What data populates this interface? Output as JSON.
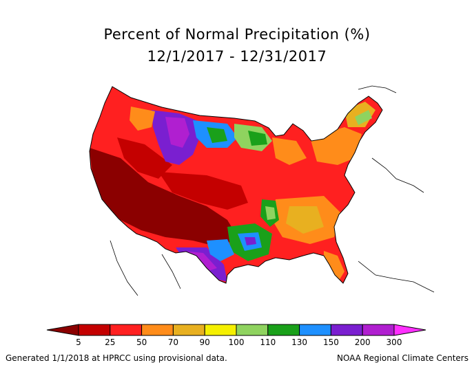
{
  "title": {
    "line1": "Percent of Normal Precipitation (%)",
    "line2": "12/1/2017 - 12/31/2017"
  },
  "legend": {
    "ticks": [
      "5",
      "25",
      "50",
      "70",
      "90",
      "100",
      "110",
      "130",
      "150",
      "200",
      "300"
    ],
    "colors": [
      "#8b0000",
      "#c40000",
      "#ff2020",
      "#ff8c1a",
      "#e8b020",
      "#f5f000",
      "#8fd35f",
      "#1aa01a",
      "#1e90ff",
      "#7a1fd0",
      "#b01fd0",
      "#ff30ff"
    ]
  },
  "footer": {
    "left": "Generated 1/1/2018 at HPRCC using provisional data.",
    "right": "NOAA Regional Climate Centers"
  },
  "map": {
    "region": "Contiguous United States",
    "background_color": "#ffffff",
    "border_color": "#000000"
  }
}
